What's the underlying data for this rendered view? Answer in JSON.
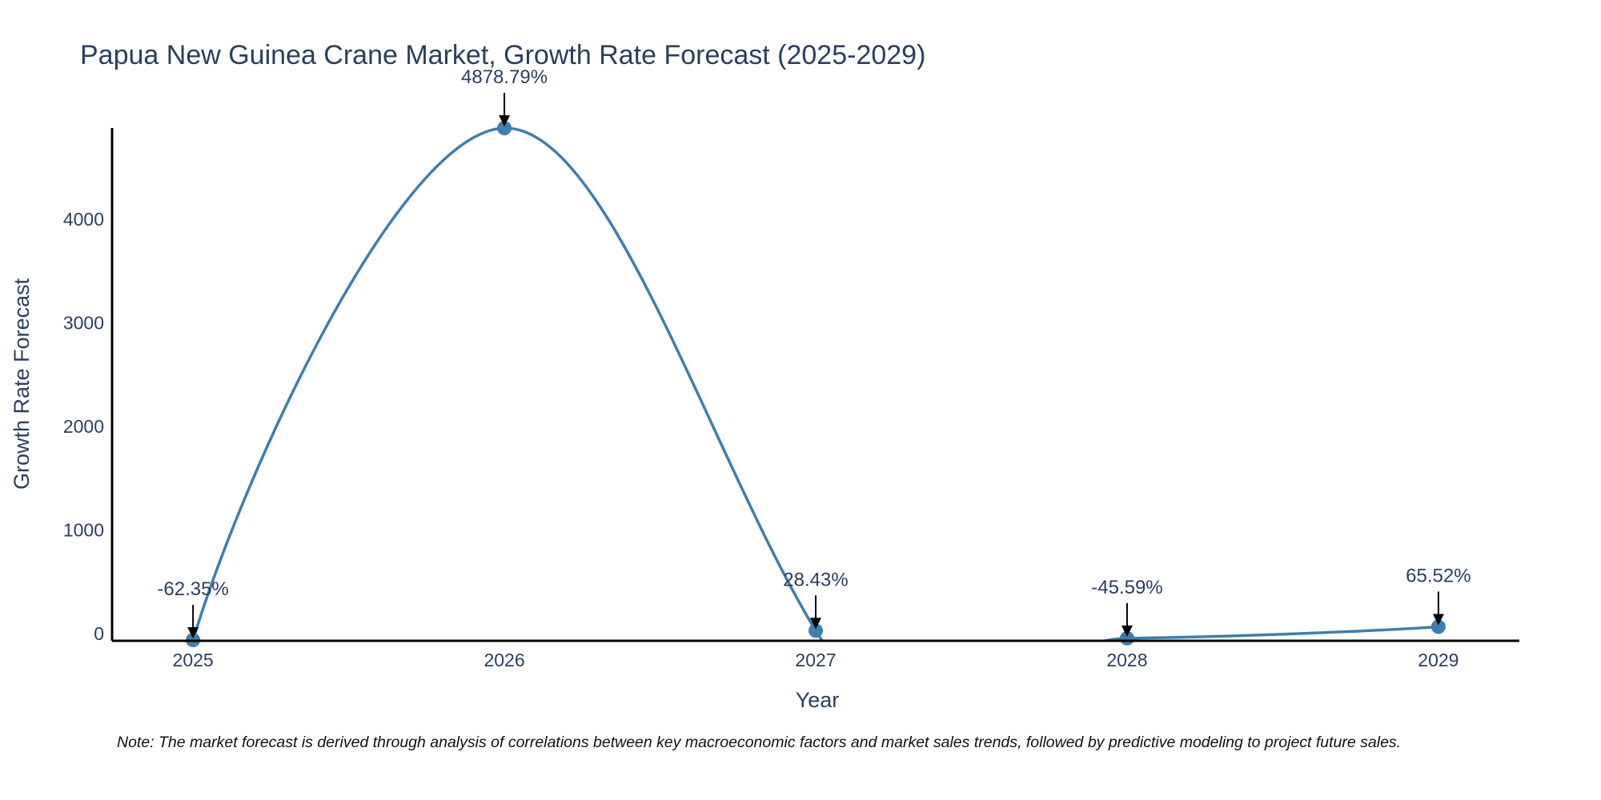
{
  "chart_data": {
    "type": "line",
    "title": "Papua New Guinea Crane Market, Growth Rate Forecast (2025-2029)",
    "xlabel": "Year",
    "ylabel": "Growth Rate Forecast",
    "categories": [
      "2025",
      "2026",
      "2027",
      "2028",
      "2029"
    ],
    "values": [
      -62.35,
      4878.79,
      28.43,
      -45.59,
      65.52
    ],
    "labels": [
      "-62.35%",
      "4878.79%",
      "28.43%",
      "-45.59%",
      "65.52%"
    ],
    "yticks": [
      0,
      1000,
      2000,
      3000,
      4000
    ],
    "ylim": [
      -70,
      4880
    ],
    "xlim": [
      2024.74,
      2029.26
    ],
    "grid": false,
    "line_color": "#3d7fad",
    "marker_color": "#3d7fad",
    "arrow_color": "#000000",
    "axis_color": "#000000"
  },
  "note": "Note: The market forecast is derived through analysis of correlations between key macroeconomic factors and market sales trends, followed by predictive modeling to project future sales."
}
